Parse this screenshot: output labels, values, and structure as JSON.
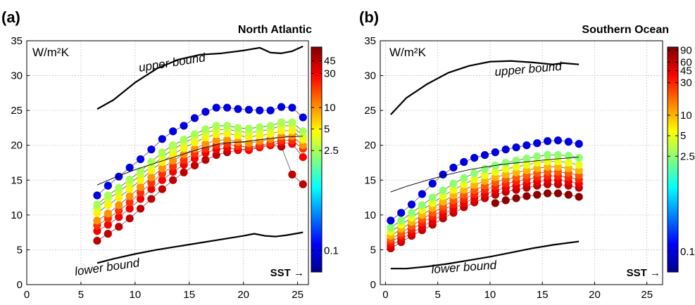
{
  "chart_data": [
    {
      "type": "scatter",
      "panel_label": "(a)",
      "title": "North Atlantic",
      "unit_label": "W/m²K",
      "xlabel": "SST →",
      "xlim": [
        0,
        26
      ],
      "ylim": [
        0,
        35
      ],
      "xticks": [
        0,
        5,
        10,
        15,
        20,
        25
      ],
      "yticks": [
        0,
        5,
        10,
        15,
        20,
        25,
        30,
        35
      ],
      "grid": true,
      "colorbar": {
        "scale": "log",
        "range": [
          0.05,
          70
        ],
        "ticks": [
          0.1,
          2.5,
          5,
          10,
          30,
          45
        ]
      },
      "upper_bound": {
        "label": "upper bound",
        "x": [
          6.5,
          8,
          10,
          12,
          14,
          16,
          18,
          20,
          21.5,
          22.5,
          23.5,
          24.5,
          25.5
        ],
        "y": [
          25.2,
          26.5,
          29.0,
          31.0,
          32.3,
          33.0,
          33.2,
          33.6,
          34.0,
          33.3,
          33.2,
          33.5,
          34.2
        ]
      },
      "lower_bound": {
        "label": "lower bound",
        "x": [
          6.5,
          8,
          10,
          12,
          14,
          16,
          18,
          20,
          21,
          22,
          23,
          24,
          25.5
        ],
        "y": [
          3.1,
          3.7,
          4.4,
          5.0,
          5.5,
          6.0,
          6.5,
          7.0,
          7.3,
          7.0,
          6.9,
          7.1,
          7.5
        ]
      },
      "reference_line": {
        "x": [
          6.5,
          8,
          10,
          12,
          14,
          16,
          18,
          20,
          22,
          24,
          25.5
        ],
        "y": [
          14.3,
          15.3,
          16.5,
          17.5,
          18.5,
          19.5,
          20.3,
          20.5,
          20.9,
          21.2,
          21.3
        ]
      },
      "x": [
        6.5,
        7.5,
        8.5,
        9.5,
        10.5,
        11.5,
        12.5,
        13.5,
        14.5,
        15.5,
        16.5,
        17.5,
        18.5,
        19.5,
        20.5,
        21.5,
        22.5,
        23.5,
        24.5,
        25.5
      ],
      "series": [
        {
          "color_value": 0.1,
          "y": [
            12.8,
            14.2,
            15.5,
            16.8,
            18.0,
            19.4,
            20.9,
            22.0,
            22.8,
            23.9,
            24.8,
            25.4,
            25.4,
            25.2,
            25.1,
            25.0,
            25.0,
            25.5,
            25.4,
            24.0
          ]
        },
        {
          "color_value": 2.5,
          "y": [
            11.5,
            12.8,
            13.9,
            15.1,
            16.3,
            17.6,
            19.0,
            20.0,
            20.8,
            21.6,
            22.3,
            22.8,
            22.8,
            22.5,
            22.4,
            22.6,
            22.8,
            23.3,
            23.3,
            22.0
          ]
        },
        {
          "color_value": 3.5,
          "y": [
            11.0,
            12.3,
            13.3,
            14.5,
            15.7,
            17.0,
            18.3,
            19.4,
            20.3,
            21.1,
            21.8,
            22.2,
            22.3,
            22.0,
            21.8,
            22.0,
            22.3,
            22.8,
            22.8,
            21.3
          ]
        },
        {
          "color_value": 5,
          "y": [
            10.3,
            11.4,
            12.5,
            13.7,
            15.0,
            16.4,
            17.6,
            18.7,
            19.6,
            20.4,
            21.1,
            21.6,
            21.7,
            21.4,
            21.2,
            21.4,
            21.6,
            22.1,
            22.1,
            20.8
          ]
        },
        {
          "color_value": 10,
          "y": [
            9.2,
            10.2,
            11.4,
            12.7,
            14.0,
            15.4,
            16.7,
            17.8,
            18.7,
            19.5,
            20.2,
            20.7,
            20.8,
            20.5,
            20.3,
            20.6,
            20.9,
            21.3,
            21.3,
            20.0
          ]
        },
        {
          "color_value": 20,
          "y": [
            8.5,
            9.5,
            10.6,
            11.8,
            13.2,
            14.6,
            15.9,
            17.0,
            17.9,
            18.8,
            19.5,
            20.0,
            20.2,
            19.9,
            19.7,
            20.0,
            20.3,
            20.7,
            20.7,
            19.5
          ]
        },
        {
          "color_value": 30,
          "y": [
            7.7,
            8.6,
            9.7,
            10.9,
            12.3,
            13.7,
            15.0,
            16.2,
            17.2,
            18.1,
            18.9,
            19.4,
            19.6,
            19.4,
            19.3,
            19.7,
            20.0,
            20.4,
            20.2,
            18.3
          ]
        },
        {
          "color_value": 45,
          "y": [
            6.3,
            7.3,
            8.3,
            9.5,
            10.9,
            12.3,
            13.7,
            15.0,
            16.1,
            17.1,
            17.9,
            18.6,
            19.0,
            19.3,
            19.5,
            19.8,
            20.0,
            19.8,
            15.8,
            14.4
          ]
        }
      ]
    },
    {
      "type": "scatter",
      "panel_label": "(b)",
      "title": "Southern Ocean",
      "unit_label": "W/m²K",
      "xlabel": "SST →",
      "xlim": [
        -0.5,
        26.5
      ],
      "ylim": [
        0,
        35
      ],
      "xticks": [
        0,
        5,
        10,
        15,
        20,
        25
      ],
      "yticks": [
        0,
        5,
        10,
        15,
        20,
        25,
        30,
        35
      ],
      "grid": true,
      "colorbar": {
        "scale": "log",
        "range": [
          0.05,
          100
        ],
        "ticks": [
          0.1,
          2.5,
          5,
          10,
          30,
          45,
          60,
          90
        ]
      },
      "upper_bound": {
        "label": "upper bound",
        "x": [
          0.5,
          2,
          4,
          6,
          8,
          10,
          12,
          14,
          16,
          17,
          18.5
        ],
        "y": [
          24.4,
          26.8,
          28.8,
          30.4,
          31.4,
          32.0,
          32.1,
          31.9,
          31.6,
          31.8,
          31.6
        ]
      },
      "lower_bound": {
        "label": "lower bound",
        "x": [
          0.5,
          2,
          4,
          6,
          8,
          10,
          12,
          14,
          16,
          18.5
        ],
        "y": [
          2.3,
          2.3,
          2.6,
          3.0,
          3.5,
          4.0,
          4.6,
          5.2,
          5.7,
          6.2
        ]
      },
      "reference_line": {
        "x": [
          0.5,
          2,
          4,
          6,
          8,
          10,
          12,
          14,
          16,
          18.5
        ],
        "y": [
          13.3,
          14.1,
          15.0,
          15.8,
          16.5,
          17.0,
          17.4,
          17.7,
          18.0,
          18.3
        ]
      },
      "x": [
        0.5,
        1.5,
        2.5,
        3.5,
        4.5,
        5.5,
        6.5,
        7.5,
        8.5,
        9.5,
        10.5,
        11.5,
        12.5,
        13.5,
        14.5,
        15.5,
        16.5,
        17.5,
        18.5
      ],
      "series": [
        {
          "color_value": 0.1,
          "y": [
            9.2,
            10.3,
            11.5,
            13.0,
            14.5,
            15.8,
            16.8,
            17.6,
            18.2,
            18.6,
            19.0,
            19.4,
            19.7,
            20.0,
            20.3,
            20.6,
            20.7,
            20.5,
            20.2
          ]
        },
        {
          "color_value": 2.5,
          "y": [
            8.2,
            9.2,
            10.3,
            11.4,
            12.5,
            13.5,
            14.5,
            15.3,
            16.0,
            16.6,
            17.1,
            17.5,
            17.8,
            18.1,
            18.4,
            18.6,
            18.6,
            18.5,
            18.2
          ]
        },
        {
          "color_value": 5,
          "y": [
            7.6,
            8.6,
            9.6,
            10.7,
            11.7,
            12.7,
            13.6,
            14.4,
            15.1,
            15.7,
            16.2,
            16.6,
            16.9,
            17.2,
            17.5,
            17.7,
            17.7,
            17.5,
            17.2
          ]
        },
        {
          "color_value": 10,
          "y": [
            7.0,
            8.0,
            9.0,
            10.0,
            11.0,
            11.9,
            12.8,
            13.6,
            14.3,
            14.9,
            15.4,
            15.8,
            16.1,
            16.4,
            16.7,
            16.9,
            16.9,
            16.7,
            16.4
          ]
        },
        {
          "color_value": 20,
          "y": [
            6.5,
            7.4,
            8.4,
            9.4,
            10.3,
            11.2,
            12.1,
            12.9,
            13.6,
            14.2,
            14.7,
            15.1,
            15.4,
            15.7,
            16.0,
            16.2,
            16.2,
            16.0,
            15.7
          ]
        },
        {
          "color_value": 30,
          "y": [
            6.1,
            7.0,
            7.9,
            8.9,
            9.8,
            10.7,
            11.5,
            12.3,
            13.0,
            13.6,
            14.1,
            14.5,
            14.8,
            15.1,
            15.4,
            15.6,
            15.6,
            15.4,
            15.1
          ]
        },
        {
          "color_value": 45,
          "y": [
            5.6,
            6.5,
            7.4,
            8.3,
            9.2,
            10.1,
            10.9,
            11.7,
            12.4,
            13.0,
            13.5,
            13.9,
            14.2,
            14.5,
            14.8,
            15.0,
            15.0,
            14.8,
            14.5
          ]
        },
        {
          "color_value": 60,
          "y": [
            5.2,
            6.1,
            7.0,
            7.8,
            8.6,
            9.5,
            10.3,
            11.1,
            11.8,
            12.4,
            12.9,
            13.3,
            13.6,
            13.9,
            14.2,
            14.4,
            14.4,
            14.2,
            13.9
          ]
        },
        {
          "color_value": 90,
          "y": [
            null,
            null,
            null,
            null,
            null,
            null,
            null,
            null,
            null,
            null,
            11.7,
            12.1,
            12.4,
            12.7,
            12.9,
            13.1,
            13.1,
            12.9,
            12.6
          ]
        }
      ]
    }
  ]
}
